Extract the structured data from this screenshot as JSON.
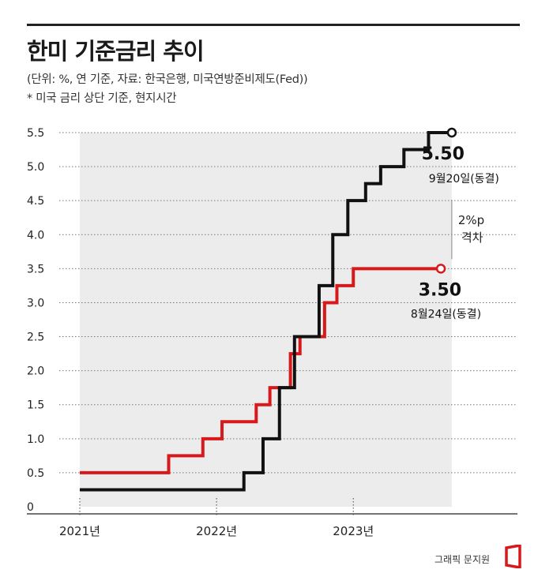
{
  "title": "한미 기준금리 추이",
  "subtitle": "(단위: %, 연 기준, 자료: 한국은행, 미국연방준비제도(Fed))",
  "note": "* 미국 금리 상단 기준, 현지시간",
  "credit": "그래픽 문지원",
  "colors": {
    "us": "#111111",
    "korea": "#d7191c",
    "fill": "#ececec",
    "grid": "#777777"
  },
  "chart_data": {
    "type": "line",
    "step": true,
    "y_ticks": [
      "5.5",
      "5.0",
      "4.5",
      "4.0",
      "3.5",
      "3.0",
      "2.5",
      "2.0",
      "1.5",
      "1.0",
      "0.5",
      "0"
    ],
    "ylim": [
      0,
      5.5
    ],
    "x_ticks": [
      {
        "label": "2021년",
        "x": 2021.0
      },
      {
        "label": "2022년",
        "x": 2022.0
      },
      {
        "label": "2023년",
        "x": 2023.0
      }
    ],
    "xlim": [
      2020.85,
      2024.2
    ],
    "grid": true,
    "series": [
      {
        "key": "us",
        "values": [
          [
            2021.0,
            0.25
          ],
          [
            2022.2,
            0.5
          ],
          [
            2022.34,
            1.0
          ],
          [
            2022.46,
            1.75
          ],
          [
            2022.57,
            2.5
          ],
          [
            2022.75,
            3.25
          ],
          [
            2022.85,
            4.0
          ],
          [
            2022.96,
            4.5
          ],
          [
            2023.09,
            4.75
          ],
          [
            2023.2,
            5.0
          ],
          [
            2023.37,
            5.25
          ],
          [
            2023.55,
            5.5
          ],
          [
            2023.72,
            5.5
          ]
        ]
      },
      {
        "key": "korea",
        "values": [
          [
            2021.0,
            0.5
          ],
          [
            2021.65,
            0.75
          ],
          [
            2021.9,
            1.0
          ],
          [
            2022.04,
            1.25
          ],
          [
            2022.29,
            1.5
          ],
          [
            2022.39,
            1.75
          ],
          [
            2022.54,
            2.25
          ],
          [
            2022.61,
            2.5
          ],
          [
            2022.79,
            3.0
          ],
          [
            2022.88,
            3.25
          ],
          [
            2023.0,
            3.5
          ],
          [
            2023.64,
            3.5
          ]
        ]
      }
    ],
    "annotations": [
      {
        "key": "us_end",
        "value": "5.50",
        "date": "9월20일(동결)"
      },
      {
        "key": "korea_end",
        "value": "3.50",
        "date": "8월24일(동결)"
      },
      {
        "key": "gap",
        "line1": "2%p",
        "line2": "격차"
      }
    ]
  }
}
